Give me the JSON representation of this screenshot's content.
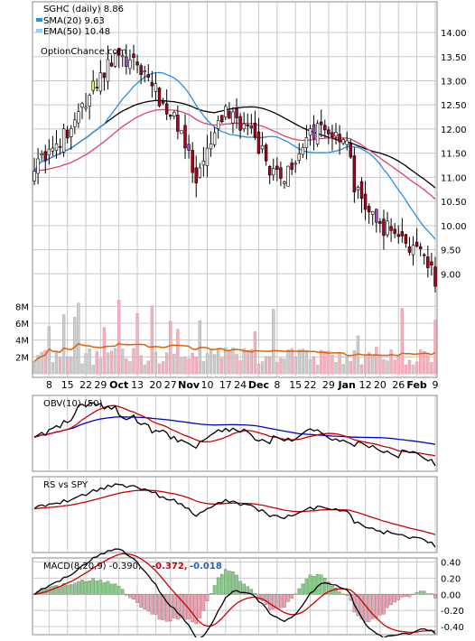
{
  "main": {
    "title": "SGHC (daily) 8.86",
    "legend": [
      {
        "label": "SMA(20) 9.63",
        "color": "#2a8fe0"
      },
      {
        "label": "EMA(50) 10.48",
        "color": "#8fd0f0"
      }
    ],
    "watermark": "OptionChance.com",
    "y_ticks": [
      "14.00",
      "13.50",
      "13.00",
      "12.50",
      "12.00",
      "11.50",
      "11.00",
      "10.50",
      "10.00",
      "9.50",
      "9.00"
    ],
    "volume_ticks": [
      "8M",
      "6M",
      "4M",
      "2M"
    ],
    "x_labels": [
      "8",
      "15",
      "22",
      "29",
      "Oct",
      "13",
      "20",
      "27",
      "Nov",
      "10",
      "17",
      "24",
      "Dec",
      "8",
      "15",
      "22",
      "29",
      "Jan",
      "12",
      "20",
      "26",
      "Feb",
      "9"
    ]
  },
  "obv": {
    "title": "OBV(10) (50)"
  },
  "rs": {
    "title": "RS vs SPY"
  },
  "macd": {
    "title": "MACD(8,20,9) -0.390,",
    "signal_label": "-0.372,",
    "hist_label": "-0.018",
    "y_ticks": [
      "0.40",
      "0.20",
      "0.00",
      "-0.20",
      "-0.40"
    ]
  },
  "colors": {
    "up": "#ffffff",
    "down": "#b00018",
    "sma": "#2a8fe0",
    "ema": "#e0406a",
    "black": "#000000",
    "grid": "#c8c8c8",
    "vol_up": "#cccccc",
    "vol_down": "#f0b4c0",
    "vol_ma": "#e06000",
    "macd_signal": "#cc0000",
    "hist_pos": "#88cc88",
    "hist_neg": "#f0a0b0"
  },
  "chart_data": [
    {
      "type": "line",
      "title": "SGHC (daily) 8.86",
      "series": [
        {
          "name": "SMA(20) 9.63",
          "x": [
            "Sep 8",
            "Oct 1",
            "Nov 1",
            "Dec 1",
            "Jan 2",
            "Feb 9"
          ],
          "values": [
            11.0,
            12.3,
            12.2,
            11.6,
            11.6,
            9.63
          ]
        },
        {
          "name": "EMA(50) 10.48",
          "x": [
            "Sep 8",
            "Oct 1",
            "Nov 1",
            "Dec 1",
            "Jan 2",
            "Feb 9"
          ],
          "values": [
            11.2,
            11.8,
            12.0,
            11.9,
            12.0,
            10.48
          ]
        }
      ],
      "close_series": {
        "x": [
          "Sep 8",
          "Sep 22",
          "Oct 1",
          "Oct 20",
          "Nov 1",
          "Nov 17",
          "Dec 1",
          "Dec 22",
          "Jan 2",
          "Jan 20",
          "Feb 9"
        ],
        "values": [
          11.3,
          12.0,
          13.5,
          12.3,
          11.0,
          12.0,
          10.9,
          12.0,
          11.1,
          10.0,
          8.86
        ]
      },
      "ylim": [
        8.5,
        14.3
      ]
    },
    {
      "type": "bar",
      "title": "",
      "ylabel": "Volume",
      "ylim": [
        0,
        9000000
      ],
      "x": [
        "Sep 8",
        "Sep 22",
        "Oct 1",
        "Oct 20",
        "Nov 1",
        "Nov 17",
        "Dec 1",
        "Dec 22",
        "Jan 2",
        "Jan 20",
        "Feb 9"
      ],
      "values": [
        2000000,
        8500000,
        4000000,
        3000000,
        5000000,
        3000000,
        4500000,
        2500000,
        3000000,
        2500000,
        3500000
      ]
    },
    {
      "type": "line",
      "title": "OBV(10) (50)"
    },
    {
      "type": "line",
      "title": "RS vs SPY"
    },
    {
      "type": "line",
      "title": "MACD(8,20,9) -0.390,",
      "ylim": [
        -0.5,
        0.45
      ]
    }
  ]
}
